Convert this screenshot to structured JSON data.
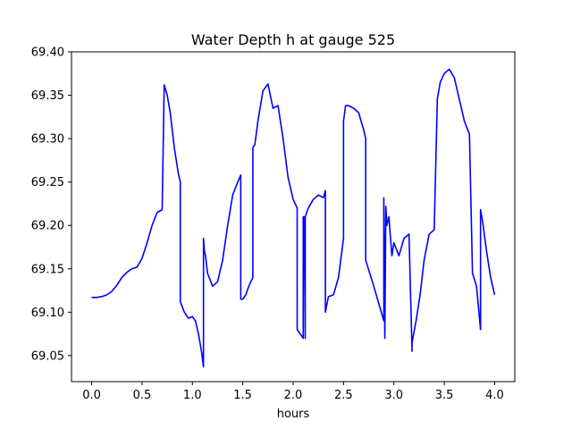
{
  "chart_data": {
    "type": "line",
    "title": "Water Depth h at gauge 525",
    "xlabel": "hours",
    "ylabel": "",
    "xlim": [
      -0.2,
      4.2
    ],
    "ylim": [
      69.02,
      69.4
    ],
    "xticks": [
      "0.0",
      "0.5",
      "1.0",
      "1.5",
      "2.0",
      "2.5",
      "3.0",
      "3.5",
      "4.0"
    ],
    "yticks": [
      "69.05",
      "69.10",
      "69.15",
      "69.20",
      "69.25",
      "69.30",
      "69.35",
      "69.40"
    ],
    "grid": false,
    "line_color": "#0000ff",
    "series": [
      {
        "x": [
          0.0,
          0.05,
          0.1,
          0.15,
          0.2,
          0.25,
          0.3,
          0.35,
          0.4,
          0.45,
          0.5,
          0.55,
          0.6,
          0.65,
          0.7,
          0.72,
          0.72,
          0.75,
          0.78,
          0.82,
          0.86,
          0.88,
          0.88,
          0.92,
          0.96,
          1.0,
          1.03,
          1.06,
          1.09,
          1.11,
          1.11,
          1.12,
          1.13,
          1.15,
          1.2,
          1.25,
          1.3,
          1.35,
          1.4,
          1.45,
          1.48,
          1.48,
          1.5,
          1.53,
          1.56,
          1.6,
          1.6,
          1.62,
          1.65,
          1.7,
          1.75,
          1.8,
          1.85,
          1.9,
          1.95,
          2.0,
          2.02,
          2.04,
          2.04,
          2.1,
          2.1,
          2.11,
          2.12,
          2.12,
          2.15,
          2.2,
          2.25,
          2.3,
          2.32,
          2.32,
          2.35,
          2.4,
          2.45,
          2.5,
          2.5,
          2.52,
          2.55,
          2.6,
          2.65,
          2.7,
          2.72,
          2.72,
          2.76,
          2.8,
          2.85,
          2.9,
          2.9,
          2.91,
          2.92,
          2.93,
          2.95,
          2.98,
          3.0,
          3.05,
          3.1,
          3.15,
          3.18,
          3.18,
          3.22,
          3.26,
          3.3,
          3.35,
          3.4,
          3.43,
          3.43,
          3.46,
          3.5,
          3.55,
          3.6,
          3.65,
          3.7,
          3.75,
          3.78,
          3.78,
          3.82,
          3.86,
          3.86,
          3.88,
          3.92,
          3.96,
          4.0
        ],
        "y": [
          69.117,
          69.117,
          69.118,
          69.12,
          69.124,
          69.131,
          69.14,
          69.146,
          69.15,
          69.152,
          69.162,
          69.18,
          69.2,
          69.215,
          69.218,
          69.362,
          69.362,
          69.35,
          69.33,
          69.29,
          69.26,
          69.25,
          69.112,
          69.1,
          69.093,
          69.095,
          69.09,
          69.075,
          69.055,
          69.037,
          69.185,
          69.17,
          69.165,
          69.145,
          69.13,
          69.135,
          69.16,
          69.2,
          69.235,
          69.25,
          69.258,
          69.115,
          69.115,
          69.12,
          69.13,
          69.14,
          69.29,
          69.293,
          69.32,
          69.355,
          69.363,
          69.335,
          69.338,
          69.3,
          69.255,
          69.23,
          69.225,
          69.22,
          69.08,
          69.07,
          69.21,
          69.21,
          69.07,
          69.21,
          69.22,
          69.23,
          69.235,
          69.232,
          69.24,
          69.1,
          69.118,
          69.12,
          69.14,
          69.185,
          69.32,
          69.338,
          69.338,
          69.335,
          69.33,
          69.31,
          69.3,
          69.16,
          69.145,
          69.13,
          69.11,
          69.09,
          69.232,
          69.07,
          69.222,
          69.2,
          69.21,
          69.165,
          69.18,
          69.165,
          69.185,
          69.19,
          69.055,
          69.065,
          69.09,
          69.12,
          69.16,
          69.19,
          69.195,
          69.34,
          69.345,
          69.365,
          69.375,
          69.38,
          69.37,
          69.345,
          69.32,
          69.305,
          69.145,
          69.145,
          69.13,
          69.08,
          69.218,
          69.205,
          69.17,
          69.14,
          69.12
        ]
      }
    ]
  }
}
